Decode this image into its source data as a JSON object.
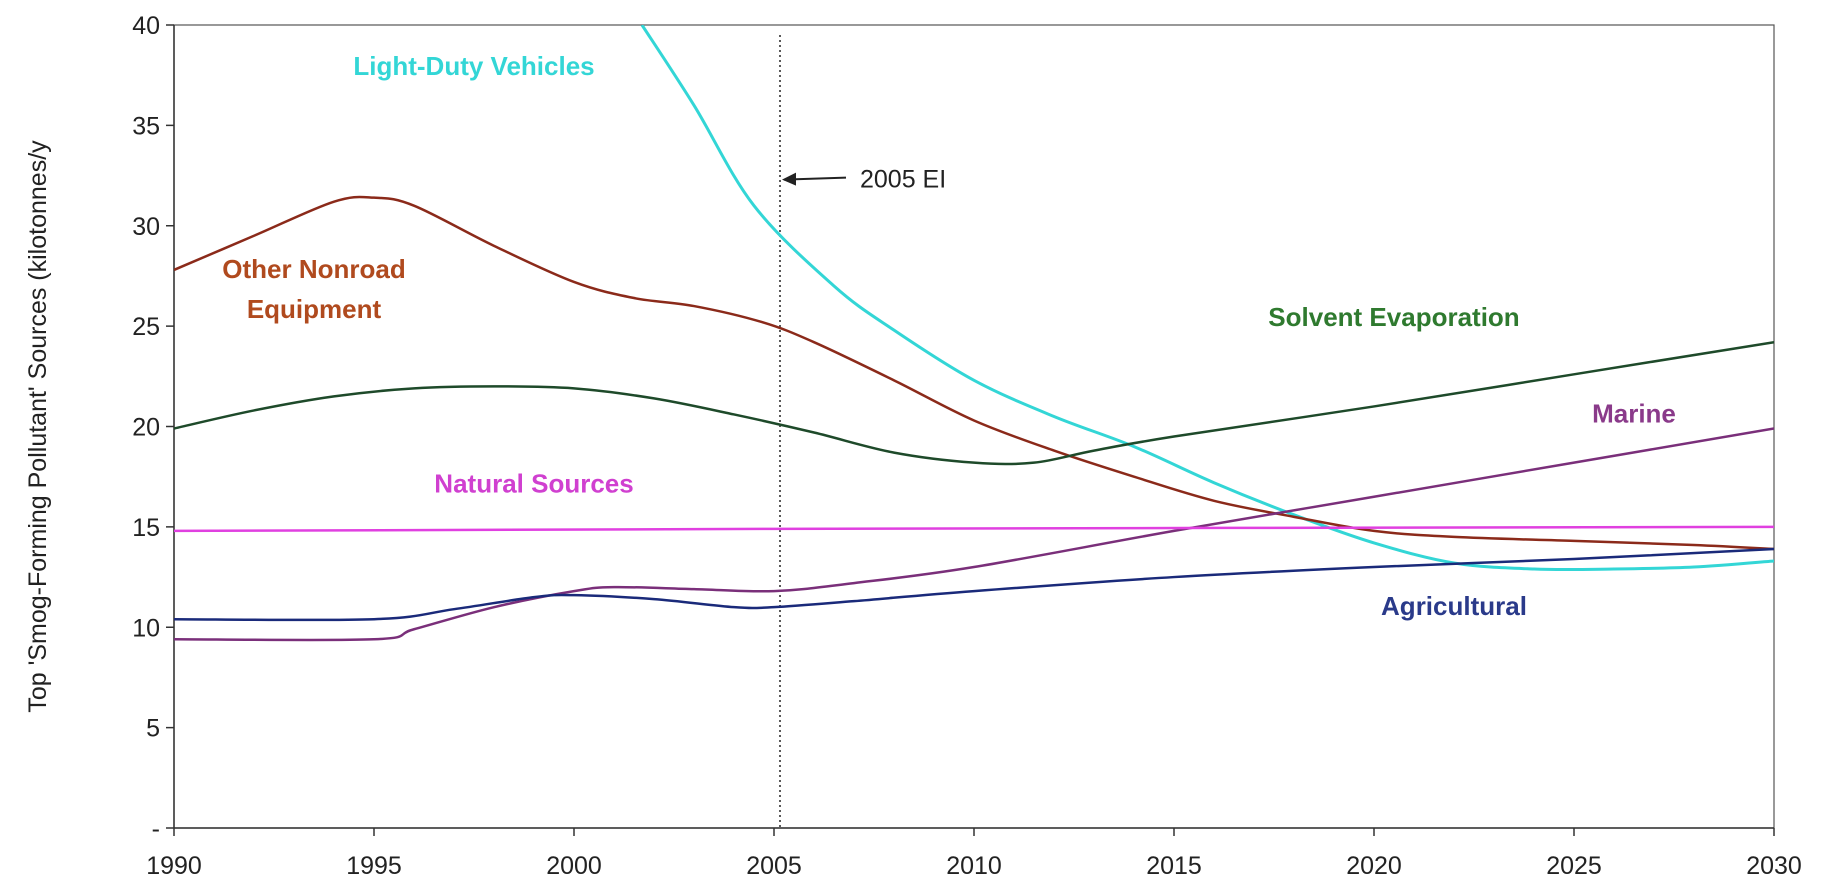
{
  "chart_data": {
    "type": "line",
    "title": "",
    "xlabel": "",
    "ylabel": "Top 'Smog-Forming Pollutant' Sources (kilotonnes/y",
    "xlim": [
      1990,
      2030
    ],
    "ylim": [
      0,
      40
    ],
    "x_ticks": [
      "1990",
      "1995",
      "2000",
      "2005",
      "2010",
      "2015",
      "2020",
      "2025",
      "2030"
    ],
    "y_ticks": [
      {
        "value": 0,
        "label": "-"
      },
      {
        "value": 5,
        "label": "5"
      },
      {
        "value": 10,
        "label": "10"
      },
      {
        "value": 15,
        "label": "15"
      },
      {
        "value": 20,
        "label": "20"
      },
      {
        "value": 25,
        "label": "25"
      },
      {
        "value": 30,
        "label": "30"
      },
      {
        "value": 35,
        "label": "35"
      },
      {
        "value": 40,
        "label": "40"
      }
    ],
    "grid": false,
    "legend": "none",
    "annotation": {
      "label": "2005 EI",
      "x": 2005
    },
    "series": [
      {
        "name": "Light-Duty Vehicles",
        "color": "#33d6d6",
        "label_x": 1997.5,
        "label_y": 37.5,
        "points": [
          [
            2001.7,
            40
          ],
          [
            2003,
            36
          ],
          [
            2004.5,
            31
          ],
          [
            2006.5,
            27
          ],
          [
            2008,
            24.8
          ],
          [
            2010,
            22.3
          ],
          [
            2012,
            20.5
          ],
          [
            2014,
            19
          ],
          [
            2016,
            17.2
          ],
          [
            2018,
            15.6
          ],
          [
            2020,
            14.2
          ],
          [
            2022,
            13.2
          ],
          [
            2024,
            12.9
          ],
          [
            2026,
            12.9
          ],
          [
            2028,
            13
          ],
          [
            2030,
            13.3
          ]
        ]
      },
      {
        "name": "Other Nonroad",
        "color": "#8b2a1a",
        "label_color": "#b04a1e",
        "label_x": 1993.5,
        "label_y": 27.4,
        "points": [
          [
            1990,
            27.8
          ],
          [
            1992,
            29.5
          ],
          [
            1994,
            31.2
          ],
          [
            1995,
            31.4
          ],
          [
            1996,
            31
          ],
          [
            1998,
            29
          ],
          [
            2000,
            27.2
          ],
          [
            2001.5,
            26.4
          ],
          [
            2003,
            26
          ],
          [
            2004.7,
            25.2
          ],
          [
            2006,
            24.2
          ],
          [
            2008,
            22.3
          ],
          [
            2010,
            20.3
          ],
          [
            2012,
            18.8
          ],
          [
            2014,
            17.5
          ],
          [
            2016,
            16.3
          ],
          [
            2018,
            15.5
          ],
          [
            2020,
            14.8
          ],
          [
            2022,
            14.5
          ],
          [
            2025,
            14.3
          ],
          [
            2028,
            14.1
          ],
          [
            2030,
            13.9
          ]
        ],
        "label_line2": "Equipment"
      },
      {
        "name": "Solvent Evaporation",
        "color": "#1e4a2a",
        "label_color": "#2f7a2f",
        "label_x": 2020.5,
        "label_y": 25,
        "points": [
          [
            1990,
            19.9
          ],
          [
            1992,
            20.8
          ],
          [
            1994,
            21.5
          ],
          [
            1996,
            21.9
          ],
          [
            1998,
            22
          ],
          [
            2000,
            21.9
          ],
          [
            2002,
            21.4
          ],
          [
            2004,
            20.6
          ],
          [
            2006,
            19.7
          ],
          [
            2008,
            18.7
          ],
          [
            2010,
            18.2
          ],
          [
            2011.5,
            18.2
          ],
          [
            2013,
            18.8
          ],
          [
            2015,
            19.5
          ],
          [
            2020,
            21
          ],
          [
            2025,
            22.6
          ],
          [
            2030,
            24.2
          ]
        ]
      },
      {
        "name": "Marine",
        "color": "#7a2f7a",
        "label_color": "#8a3a8a",
        "label_x": 2026.5,
        "label_y": 20.2,
        "points": [
          [
            1990,
            9.4
          ],
          [
            1995,
            9.4
          ],
          [
            1996,
            9.9
          ],
          [
            1998,
            11
          ],
          [
            2000,
            11.8
          ],
          [
            2001,
            12
          ],
          [
            2003,
            11.9
          ],
          [
            2005,
            11.8
          ],
          [
            2007,
            12.2
          ],
          [
            2010,
            13
          ],
          [
            2015,
            14.8
          ],
          [
            2020,
            16.5
          ],
          [
            2025,
            18.2
          ],
          [
            2030,
            19.9
          ]
        ]
      },
      {
        "name": "Natural Sources",
        "color": "#e040e0",
        "label_color": "#d040d0",
        "label_x": 1999,
        "label_y": 16.7,
        "points": [
          [
            1990,
            14.8
          ],
          [
            2005,
            14.9
          ],
          [
            2030,
            15
          ]
        ]
      },
      {
        "name": "Agricultural",
        "color": "#1a2a7a",
        "label_color": "#2a3a8a",
        "label_x": 2022,
        "label_y": 10.6,
        "points": [
          [
            1990,
            10.4
          ],
          [
            1995,
            10.4
          ],
          [
            1997,
            10.9
          ],
          [
            1999,
            11.5
          ],
          [
            2000,
            11.6
          ],
          [
            2002,
            11.4
          ],
          [
            2004,
            11
          ],
          [
            2005,
            11
          ],
          [
            2007,
            11.3
          ],
          [
            2010,
            11.8
          ],
          [
            2015,
            12.5
          ],
          [
            2020,
            13
          ],
          [
            2025,
            13.4
          ],
          [
            2030,
            13.9
          ]
        ]
      }
    ]
  }
}
